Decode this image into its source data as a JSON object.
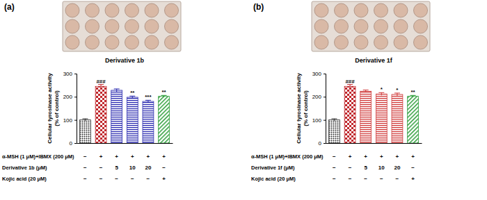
{
  "chart_data": [
    {
      "type": "bar",
      "panel_label": "(a)",
      "title": "Derivative 1b",
      "y_label": [
        "Cellular tyrosinase activity",
        "(% of control)"
      ],
      "categories": [
        null,
        null,
        null,
        null,
        null,
        null
      ],
      "values": [
        100,
        245,
        228,
        198,
        180,
        202
      ],
      "errors": [
        5,
        8,
        6,
        5,
        5,
        4
      ],
      "colors": [
        "#333333",
        "#c0282d",
        "#2b2bb0",
        "#2b2bb0",
        "#2b2bb0",
        "#2e9e3a"
      ],
      "ylim": [
        0,
        300
      ],
      "yticks": [
        0,
        100,
        200,
        300
      ],
      "annotations": [
        {
          "index": 1,
          "text": "###"
        },
        {
          "index": 3,
          "text": "**"
        },
        {
          "index": 4,
          "text": "***"
        },
        {
          "index": 5,
          "text": "**"
        }
      ],
      "treatments": [
        {
          "label": "α-MSH (1 μM)+IBMX (200 μM)",
          "values": [
            "−",
            "+",
            "+",
            "+",
            "+",
            "+"
          ]
        },
        {
          "label": "Derivative 1b (μM)",
          "values": [
            "−",
            "−",
            "5",
            "10",
            "20",
            "−"
          ]
        },
        {
          "label": "Kojic acid (20 μM)",
          "values": [
            "−",
            "−",
            "−",
            "−",
            "−",
            "+"
          ]
        }
      ]
    },
    {
      "type": "bar",
      "panel_label": "(b)",
      "title": "Derivative 1f",
      "y_label": [
        "Cellular tyrosinase activity",
        "(% of control)"
      ],
      "categories": [
        null,
        null,
        null,
        null,
        null,
        null
      ],
      "values": [
        100,
        245,
        224,
        212,
        210,
        202
      ],
      "errors": [
        5,
        8,
        5,
        6,
        6,
        4
      ],
      "colors": [
        "#333333",
        "#c0282d",
        "#d03a3a",
        "#d03a3a",
        "#d03a3a",
        "#2e9e3a"
      ],
      "ylim": [
        0,
        300
      ],
      "yticks": [
        0,
        100,
        200,
        300
      ],
      "annotations": [
        {
          "index": 1,
          "text": "###"
        },
        {
          "index": 3,
          "text": "*"
        },
        {
          "index": 4,
          "text": "*"
        },
        {
          "index": 5,
          "text": "**"
        }
      ],
      "treatments": [
        {
          "label": "α-MSH (1 μM)+IBMX (200 μM)",
          "values": [
            "−",
            "+",
            "+",
            "+",
            "+",
            "+"
          ]
        },
        {
          "label": "Derivative 1f (μM)",
          "values": [
            "−",
            "−",
            "5",
            "10",
            "20",
            "−"
          ]
        },
        {
          "label": "Kojic acid (20 μM)",
          "values": [
            "−",
            "−",
            "−",
            "−",
            "−",
            "+"
          ]
        }
      ]
    }
  ]
}
